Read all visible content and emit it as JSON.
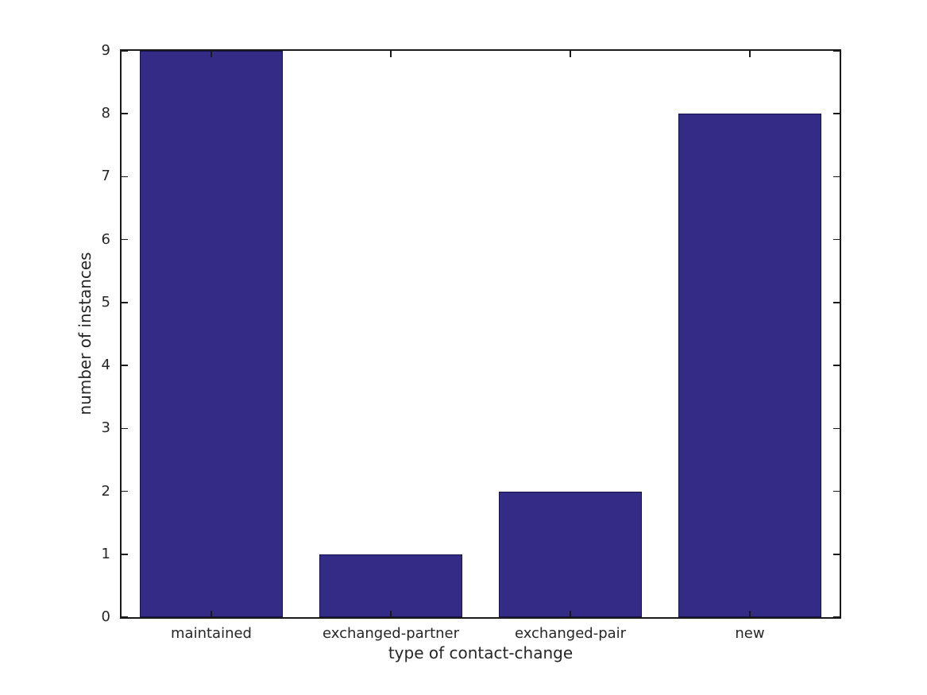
{
  "figure": {
    "background": "#ffffff"
  },
  "chart_data": {
    "type": "bar",
    "categories": [
      "maintained",
      "exchanged-partner",
      "exchanged-pair",
      "new"
    ],
    "values": [
      9,
      1,
      2,
      8
    ],
    "title": "",
    "xlabel": "type of contact-change",
    "ylabel": "number of instances",
    "ylim": [
      0,
      9
    ],
    "yticks": [
      0,
      1,
      2,
      3,
      4,
      5,
      6,
      7,
      8,
      9
    ],
    "bar_width_fraction": 0.8,
    "bar_color": "#342b87",
    "bar_edge_color": "#15114a",
    "axis_color": "#1a1a1a",
    "text_color": "#262626",
    "grid": false,
    "legend": null,
    "tick_direction": "in",
    "box": true
  }
}
